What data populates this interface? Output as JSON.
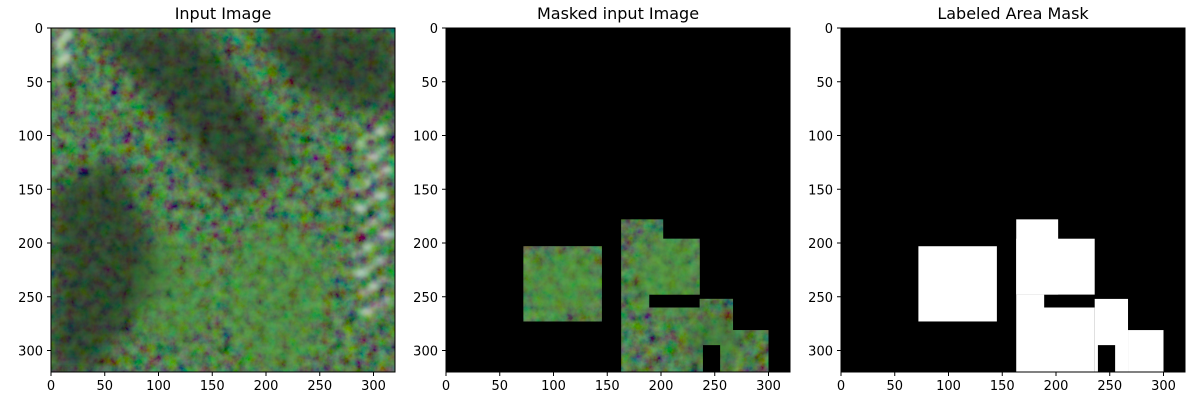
{
  "figure": {
    "background": "#ffffff"
  },
  "chart_data": [
    {
      "type": "image",
      "title": "Input Image",
      "xlim": [
        0,
        320
      ],
      "ylim": [
        320,
        0
      ],
      "xticks": [
        0,
        50,
        100,
        150,
        200,
        250,
        300
      ],
      "yticks": [
        0,
        50,
        100,
        150,
        200,
        250,
        300
      ],
      "content": "satellite-forest-texture",
      "colors": {
        "base": "#25351f",
        "dark": "#141c12",
        "bright_green": "#4f9d3b",
        "snow": "#cfd8d1"
      },
      "snow_patches": [
        {
          "x": [
            270,
            320
          ],
          "y": [
            90,
            270
          ]
        },
        {
          "x": [
            0,
            20
          ],
          "y": [
            0,
            40
          ]
        }
      ],
      "bright_canopy_regions": [
        {
          "x": [
            80,
            150
          ],
          "y": [
            190,
            300
          ]
        },
        {
          "x": [
            160,
            260
          ],
          "y": [
            180,
            320
          ]
        }
      ]
    },
    {
      "type": "image",
      "title": "Masked input Image",
      "xlim": [
        0,
        320
      ],
      "ylim": [
        320,
        0
      ],
      "xticks": [
        0,
        50,
        100,
        150,
        200,
        250,
        300
      ],
      "yticks": [
        0,
        50,
        100,
        150,
        200,
        250,
        300
      ],
      "content": "masked-satellite-texture",
      "background_color": "#000000",
      "visible_regions": [
        {
          "x": [
            72,
            145
          ],
          "y": [
            203,
            273
          ]
        },
        {
          "x": [
            163,
            202
          ],
          "y": [
            178,
            248
          ]
        },
        {
          "x": [
            163,
            236
          ],
          "y": [
            196,
            248
          ]
        },
        {
          "x": [
            163,
            189
          ],
          "y": [
            248,
            260
          ]
        },
        {
          "x": [
            163,
            236
          ],
          "y": [
            260,
            320
          ]
        },
        {
          "x": [
            236,
            267
          ],
          "y": [
            252,
            320
          ]
        },
        {
          "x": [
            267,
            300
          ],
          "y": [
            281,
            320
          ]
        }
      ],
      "hidden_regions": [
        {
          "x": [
            239,
            255
          ],
          "y": [
            295,
            320
          ]
        }
      ]
    },
    {
      "type": "image",
      "title": "Labeled Area Mask",
      "xlim": [
        0,
        320
      ],
      "ylim": [
        320,
        0
      ],
      "xticks": [
        0,
        50,
        100,
        150,
        200,
        250,
        300
      ],
      "yticks": [
        0,
        50,
        100,
        150,
        200,
        250,
        300
      ],
      "content": "binary-mask",
      "colors": {
        "background": "#000000",
        "foreground": "#ffffff"
      },
      "white_regions": [
        {
          "x": [
            72,
            145
          ],
          "y": [
            203,
            273
          ]
        },
        {
          "x": [
            163,
            202
          ],
          "y": [
            178,
            248
          ]
        },
        {
          "x": [
            163,
            236
          ],
          "y": [
            196,
            248
          ]
        },
        {
          "x": [
            163,
            189
          ],
          "y": [
            248,
            260
          ]
        },
        {
          "x": [
            163,
            236
          ],
          "y": [
            260,
            320
          ]
        },
        {
          "x": [
            236,
            267
          ],
          "y": [
            252,
            320
          ]
        },
        {
          "x": [
            267,
            300
          ],
          "y": [
            281,
            320
          ]
        }
      ],
      "black_regions": [
        {
          "x": [
            239,
            255
          ],
          "y": [
            295,
            320
          ]
        }
      ]
    }
  ]
}
